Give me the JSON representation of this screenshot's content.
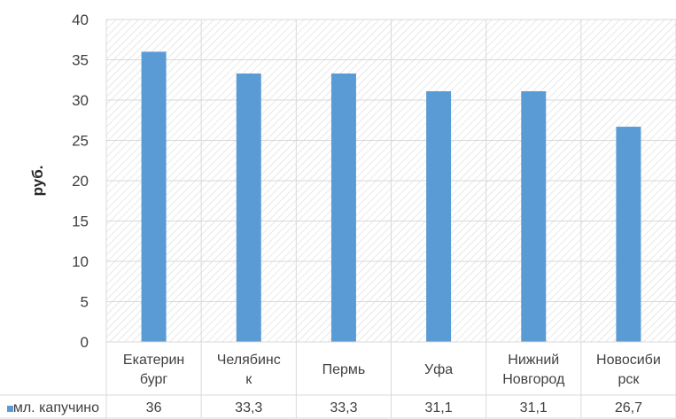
{
  "chart_data": {
    "type": "bar",
    "ylabel": "руб.",
    "ylim": [
      0,
      40
    ],
    "yticks": [
      0,
      5,
      10,
      15,
      20,
      25,
      30,
      35,
      40
    ],
    "categories": [
      [
        "Екатерин",
        "бург"
      ],
      [
        "Челябинс",
        "к"
      ],
      [
        "Пермь"
      ],
      [
        "Уфа"
      ],
      [
        "Нижний",
        "Новгород"
      ],
      [
        "Новосиби",
        "рск"
      ]
    ],
    "series": [
      {
        "name": "мл. капучино",
        "values": [
          36,
          33.3,
          33.3,
          31.1,
          31.1,
          26.7
        ],
        "labels": [
          "36",
          "33,3",
          "33,3",
          "31,1",
          "31,1",
          "26,7"
        ],
        "color": "#5b9bd5"
      }
    ],
    "data_table": true,
    "grid": true
  }
}
